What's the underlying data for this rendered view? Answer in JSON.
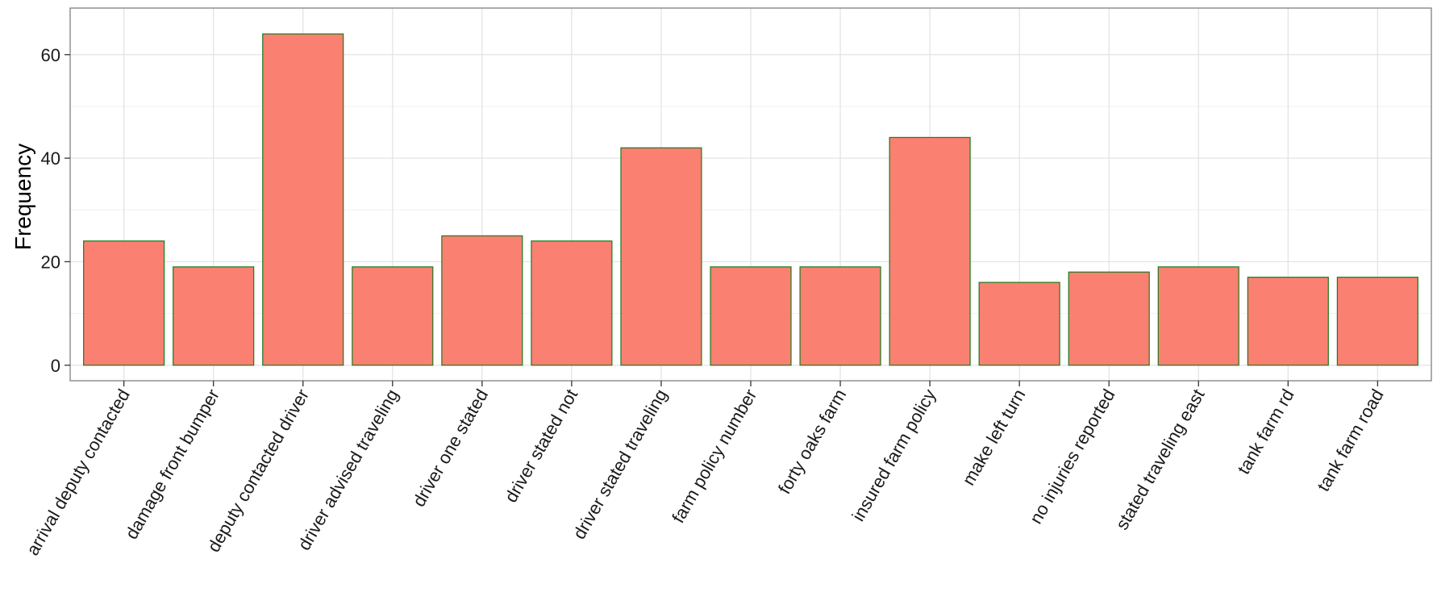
{
  "chart_data": {
    "type": "bar",
    "ylabel": "Frequency",
    "xlabel": "",
    "ylim": [
      -3,
      69
    ],
    "yticks": [
      0,
      20,
      40,
      60
    ],
    "grid": true,
    "bar_fill": "#FA8072",
    "bar_outline": "#1B7A1B",
    "categories": [
      "arrival deputy contacted",
      "damage front bumper",
      "deputy contacted driver",
      "driver advised traveling",
      "driver one stated",
      "driver stated not",
      "driver stated traveling",
      "farm policy number",
      "forty oaks farm",
      "insured farm policy",
      "make left turn",
      "no injuries reported",
      "stated traveling east",
      "tank farm rd",
      "tank farm road"
    ],
    "values": [
      24,
      19,
      64,
      19,
      25,
      24,
      42,
      19,
      19,
      44,
      16,
      18,
      19,
      17,
      17
    ]
  }
}
